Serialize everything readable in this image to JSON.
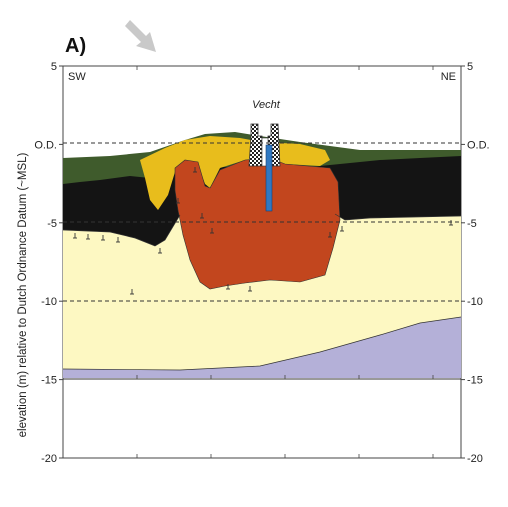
{
  "panel_label": "A)",
  "directions": {
    "left": "SW",
    "right": "NE"
  },
  "y_axis": {
    "title": "elevation (m) relative to Dutch Ordnance Datum (~MSL)",
    "ticks": [
      {
        "value": 5,
        "label": "5"
      },
      {
        "value": 0,
        "label": "O.D."
      },
      {
        "value": -5,
        "label": "-5"
      },
      {
        "value": -10,
        "label": "-10"
      },
      {
        "value": -15,
        "label": "-15"
      },
      {
        "value": -20,
        "label": "-20"
      }
    ],
    "range": [
      -20,
      5
    ]
  },
  "annotations": {
    "river": "Vecht"
  },
  "colors": {
    "dark_green": "#3f5b2c",
    "black_layer": "#141414",
    "yellow_layer": "#e8bd1c",
    "red_body": "#c2461e",
    "cream_layer": "#fdf8c2",
    "lavender_layer": "#b4b0d8",
    "well_blue": "#2f78c2",
    "arrow_gray": "#c9c9c9"
  }
}
